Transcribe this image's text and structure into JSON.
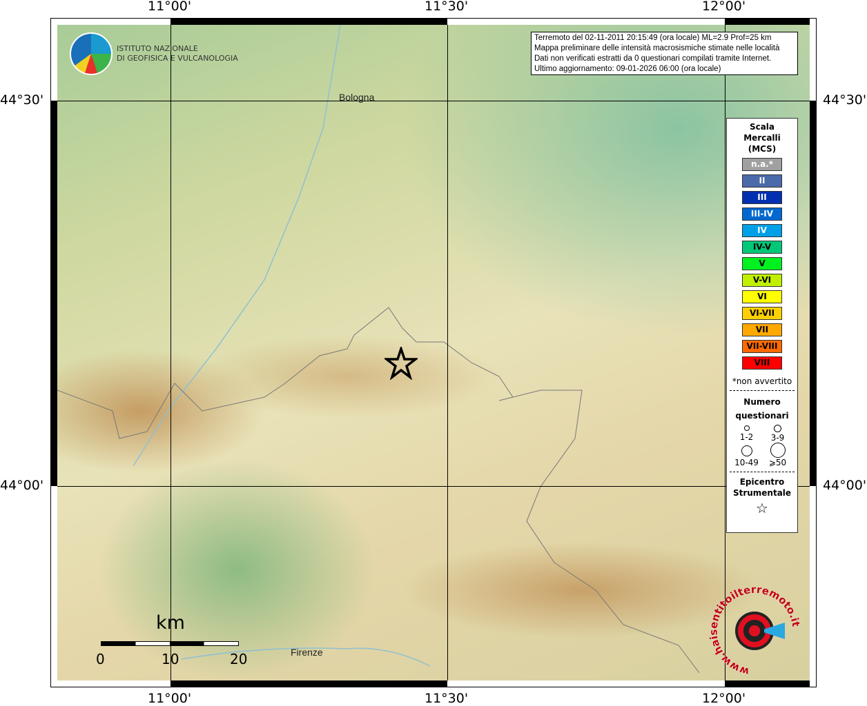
{
  "info": {
    "line1": "Terremoto del 02-11-2011 20:15:49 (ora locale) ML=2.9 Prof=25 km",
    "line2": "Mappa preliminare delle intensità macrosismiche stimate nelle località",
    "line3": "Dati non verificati estratti da 0 questionari compilati tramite Internet.",
    "line4": "Ultimo aggiornamento: 09-01-2026 06:00 (ora locale)"
  },
  "logo": {
    "line1": "ISTITUTO NAZIONALE",
    "line2": "DI GEOFISICA E VULCANOLOGIA"
  },
  "axes": {
    "lon": [
      "11°00'",
      "11°30'",
      "12°00'"
    ],
    "lat": [
      "44°30'",
      "44°00'"
    ]
  },
  "cities": {
    "bologna": "Bologna",
    "firenze": "Firenze"
  },
  "scale": {
    "unit": "km",
    "ticks": [
      "0",
      "10",
      "20"
    ]
  },
  "legend": {
    "title1": "Scala",
    "title2": "Mercalli",
    "title3": "(MCS)",
    "items": [
      {
        "label": "n.a.*",
        "color": "#a0a0a0",
        "text": "#fff"
      },
      {
        "label": "II",
        "color": "#4a6aaa",
        "text": "#fff"
      },
      {
        "label": "III",
        "color": "#0030b0",
        "text": "#fff"
      },
      {
        "label": "III-IV",
        "color": "#0068d0",
        "text": "#fff"
      },
      {
        "label": "IV",
        "color": "#00a0e8",
        "text": "#fff"
      },
      {
        "label": "IV-V",
        "color": "#00c878",
        "text": "#000"
      },
      {
        "label": "V",
        "color": "#00f020",
        "text": "#000"
      },
      {
        "label": "V-VI",
        "color": "#c0f000",
        "text": "#000"
      },
      {
        "label": "VI",
        "color": "#ffff00",
        "text": "#000"
      },
      {
        "label": "VI-VII",
        "color": "#ffd000",
        "text": "#000"
      },
      {
        "label": "VII",
        "color": "#ffa800",
        "text": "#000"
      },
      {
        "label": "VII-VIII",
        "color": "#ff6a00",
        "text": "#000"
      },
      {
        "label": "VIII",
        "color": "#ff0000",
        "text": "#000"
      }
    ],
    "na_note": "*non avvertito",
    "count_title1": "Numero",
    "count_title2": "questionari",
    "counts": [
      "1-2",
      "3-9",
      "10-49",
      "⩾50"
    ],
    "epi1": "Epicentro",
    "epi2": "Strumentale"
  },
  "badge": "www.haisentitoilterremoto.it"
}
